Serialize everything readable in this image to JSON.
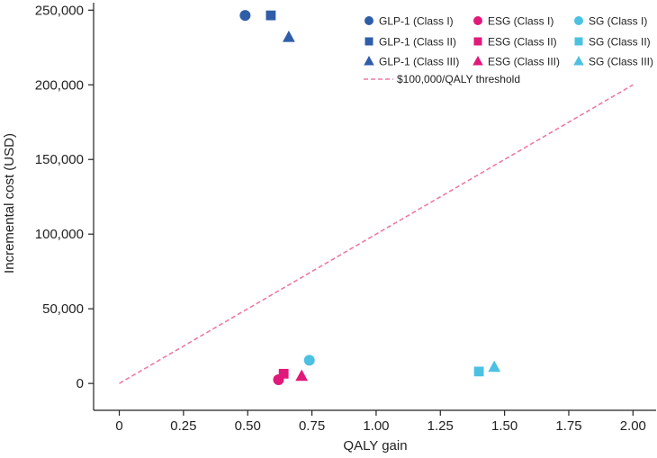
{
  "chart_data": {
    "type": "scatter",
    "title": "",
    "xlabel": "QALY gain",
    "ylabel": "Incremental cost (USD)",
    "xlim": [
      -0.1,
      2.09
    ],
    "ylim": [
      -18000,
      255000
    ],
    "xticks": [
      0,
      0.25,
      0.5,
      0.75,
      1.0,
      1.25,
      1.5,
      1.75,
      2.0
    ],
    "xtick_labels": [
      "0",
      "0.25",
      "0.50",
      "0.75",
      "1.00",
      "1.25",
      "1.50",
      "1.75",
      "2.00"
    ],
    "yticks": [
      0,
      50000,
      100000,
      150000,
      200000,
      250000
    ],
    "ytick_labels": [
      "0",
      "50,000",
      "100,000",
      "150,000",
      "200,000",
      "250,000"
    ],
    "grid": false,
    "legend_position": "top-right",
    "series": [
      {
        "name": "GLP-1 (Class I)",
        "marker": "circle",
        "color": "#2f5da8",
        "points": [
          {
            "x": 0.49,
            "y": 246500
          }
        ]
      },
      {
        "name": "GLP-1 (Class II)",
        "marker": "square",
        "color": "#2f5da8",
        "points": [
          {
            "x": 0.59,
            "y": 246500
          }
        ]
      },
      {
        "name": "GLP-1 (Class III)",
        "marker": "triangle",
        "color": "#2f5da8",
        "points": [
          {
            "x": 0.66,
            "y": 232000
          }
        ]
      },
      {
        "name": "ESG (Class I)",
        "marker": "circle",
        "color": "#e0197a",
        "points": [
          {
            "x": 0.62,
            "y": 2500
          }
        ]
      },
      {
        "name": "ESG (Class II)",
        "marker": "square",
        "color": "#e0197a",
        "points": [
          {
            "x": 0.64,
            "y": 6500
          }
        ]
      },
      {
        "name": "ESG (Class III)",
        "marker": "triangle",
        "color": "#e0197a",
        "points": [
          {
            "x": 0.71,
            "y": 5000
          }
        ]
      },
      {
        "name": "SG (Class I)",
        "marker": "circle",
        "color": "#4cc1e2",
        "points": [
          {
            "x": 0.74,
            "y": 15500
          }
        ]
      },
      {
        "name": "SG (Class II)",
        "marker": "square",
        "color": "#4cc1e2",
        "points": [
          {
            "x": 1.4,
            "y": 8000
          }
        ]
      },
      {
        "name": "SG (Class III)",
        "marker": "triangle",
        "color": "#4cc1e2",
        "points": [
          {
            "x": 1.46,
            "y": 11000
          }
        ]
      }
    ],
    "threshold": {
      "name": "$100,000/QALY threshold",
      "slope": 100000,
      "x_range": [
        0,
        2.0
      ],
      "color": "#ef7aa1",
      "style": "dashed"
    }
  }
}
